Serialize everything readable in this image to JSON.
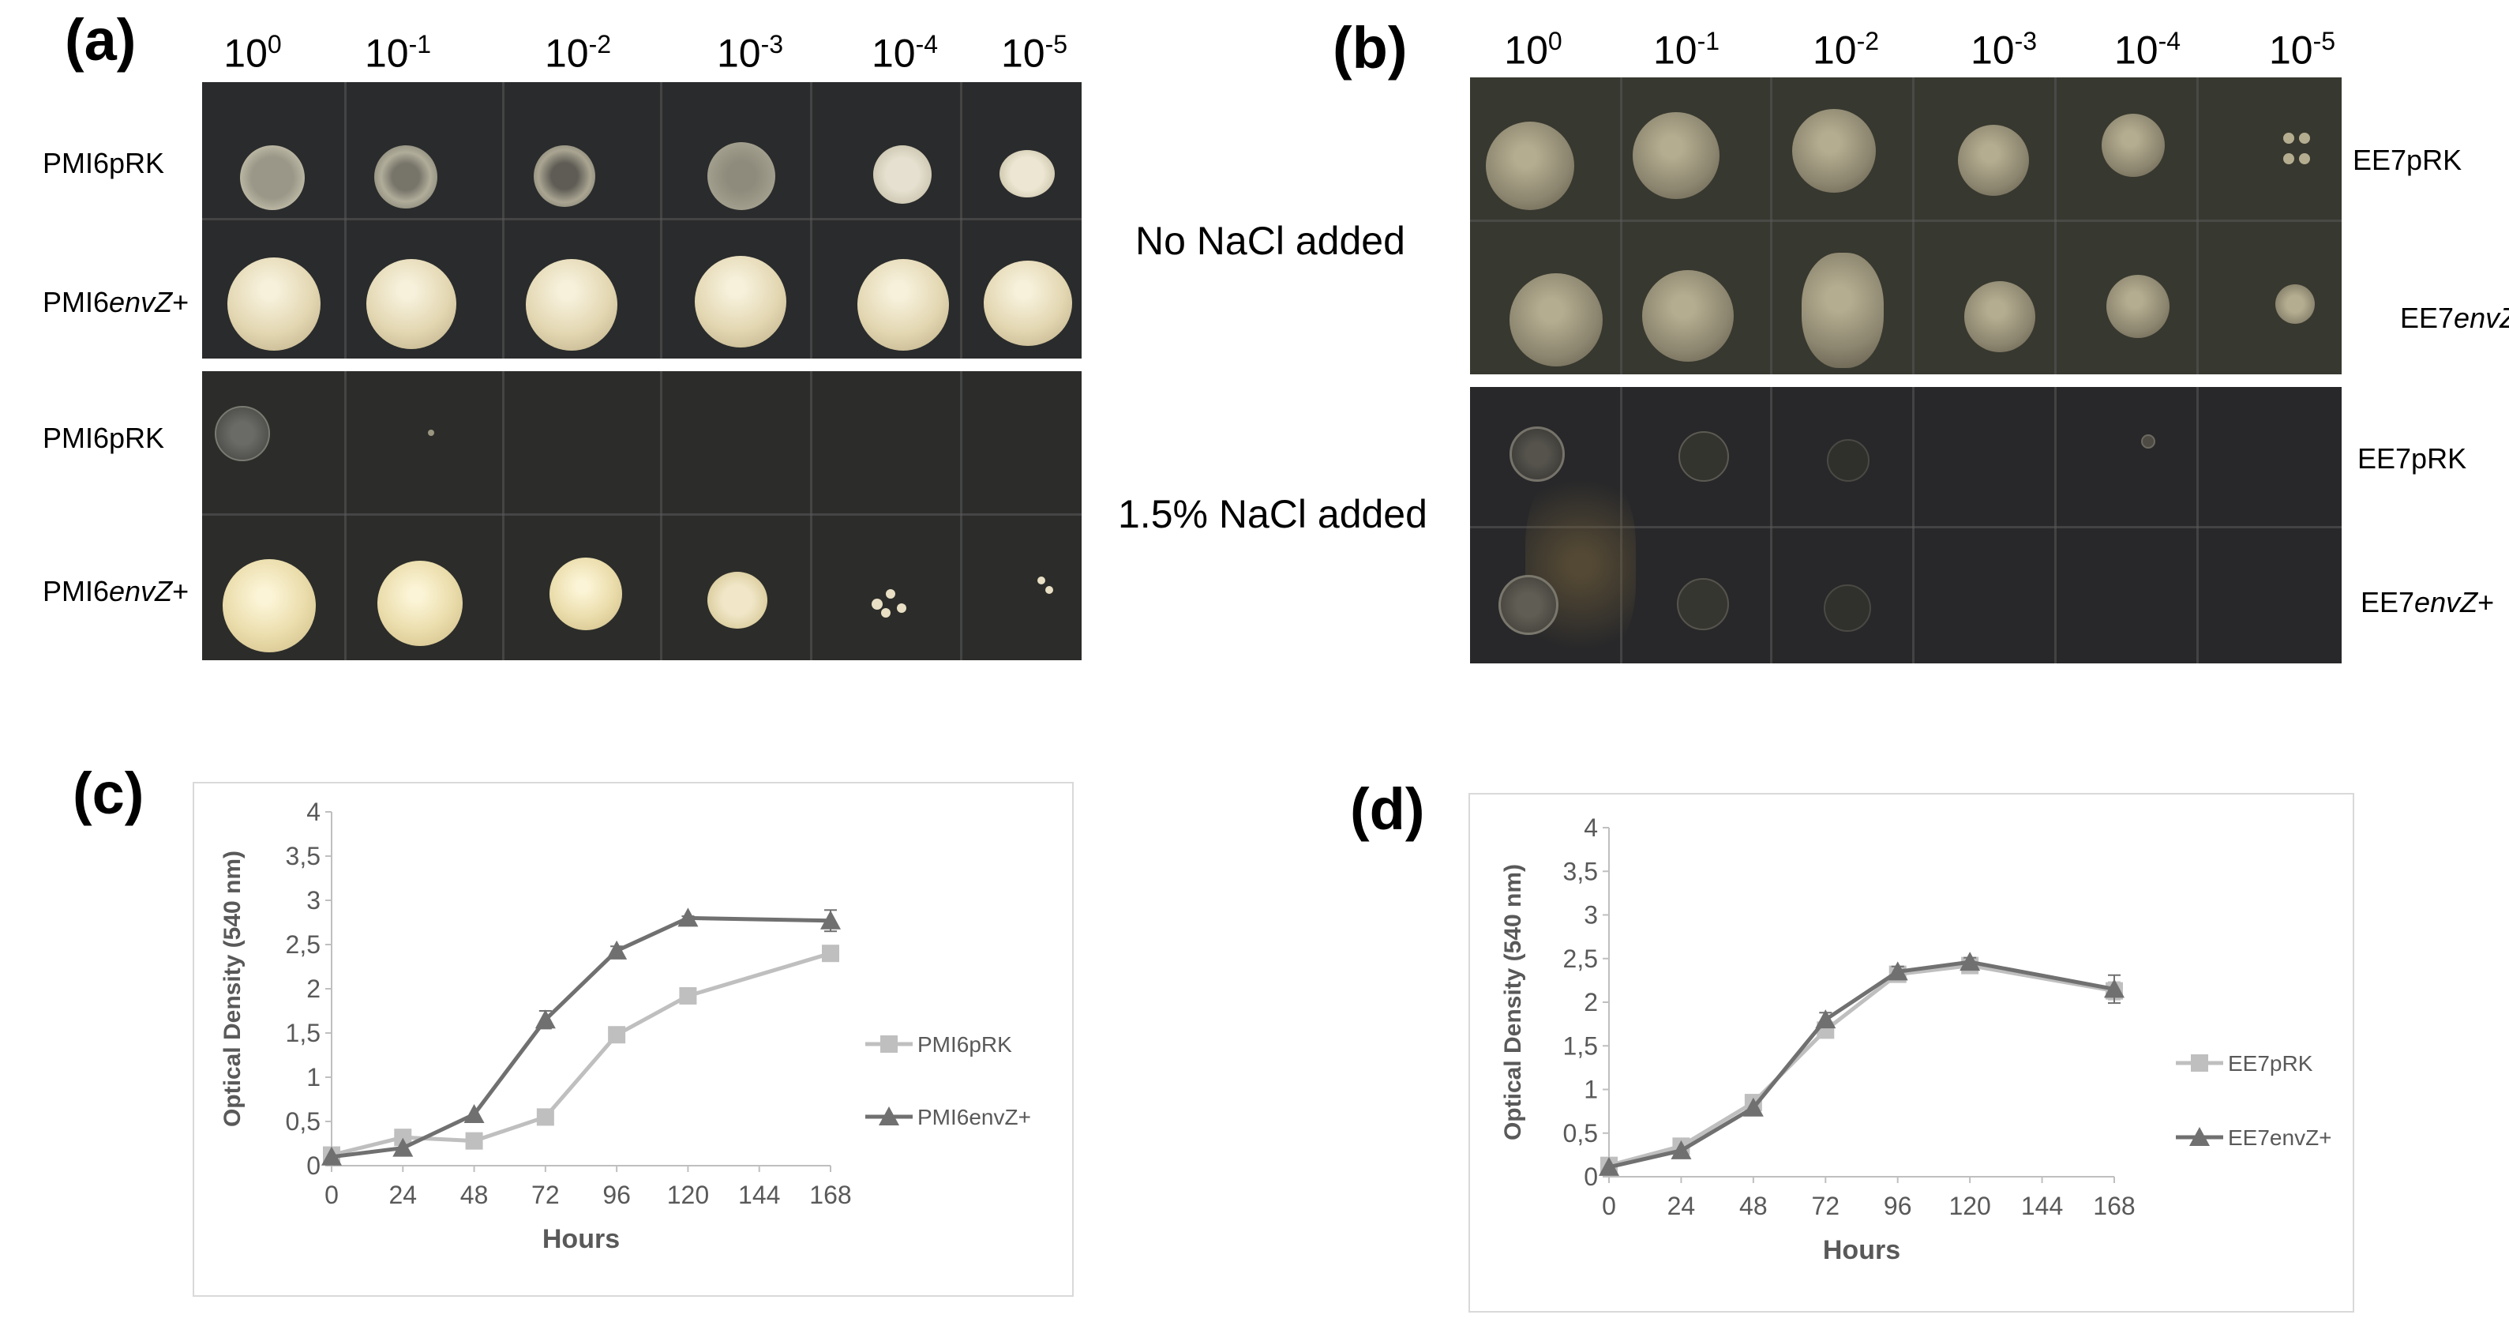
{
  "panels": {
    "a": {
      "letter": "(a)",
      "dilutions": [
        [
          "10",
          "0"
        ],
        [
          "10",
          "-1"
        ],
        [
          "10",
          "-2"
        ],
        [
          "10",
          "-3"
        ],
        [
          "10",
          "-4"
        ],
        [
          "10",
          "-5"
        ]
      ],
      "rows": [
        {
          "prefix": "PMI6",
          "suffix": "pRK",
          "italic": ""
        },
        {
          "prefix": "PMI6",
          "suffix": "+",
          "italic": "envZ"
        },
        {
          "prefix": "PMI6",
          "suffix": "pRK",
          "italic": ""
        },
        {
          "prefix": "PMI6",
          "suffix": "+",
          "italic": "envZ"
        }
      ],
      "conditions": [
        "No NaCl added",
        "1.5% NaCl added"
      ]
    },
    "b": {
      "letter": "(b)",
      "dilutions": [
        [
          "10",
          "0"
        ],
        [
          "10",
          "-1"
        ],
        [
          "10",
          "-2"
        ],
        [
          "10",
          "-3"
        ],
        [
          "10",
          "-4"
        ],
        [
          "10",
          "-5"
        ]
      ],
      "rows": [
        {
          "prefix": "EE7",
          "suffix": "pRK",
          "italic": ""
        },
        {
          "prefix": "EE7",
          "suffix": "+",
          "italic": "envZ"
        },
        {
          "prefix": "EE7",
          "suffix": "pRK",
          "italic": ""
        },
        {
          "prefix": "EE7",
          "suffix": "+",
          "italic": "envZ"
        }
      ]
    },
    "c": {
      "letter": "(c)"
    },
    "d": {
      "letter": "(d)"
    }
  },
  "colors": {
    "pRK_series": "#bfbfbf",
    "envZ_series": "#707070",
    "axis_text": "#595959",
    "plate_a": "#2a2b2c",
    "colony_light": "#e8dcb8"
  },
  "chart_data": [
    {
      "panel": "c",
      "type": "line",
      "title": "",
      "xlabel": "Hours",
      "ylabel": "Optical Density (540 nm)",
      "xticks": [
        "0",
        "24",
        "48",
        "72",
        "96",
        "120",
        "144",
        "168"
      ],
      "yticks": [
        "0",
        "0,5",
        "1",
        "1,5",
        "2",
        "2,5",
        "3",
        "3,5",
        "4"
      ],
      "xlim": [
        0,
        168
      ],
      "ylim": [
        0,
        4
      ],
      "legend_position": "right",
      "series": [
        {
          "name": "PMI6pRK",
          "marker": "square",
          "x": [
            0,
            24,
            48,
            72,
            96,
            120,
            168
          ],
          "y": [
            0.12,
            0.32,
            0.28,
            0.55,
            1.48,
            1.92,
            2.4
          ],
          "err": [
            0,
            0,
            0,
            0.03,
            0.03,
            0.03,
            0.03
          ]
        },
        {
          "name": "PMI6envZ+",
          "marker": "triangle",
          "x": [
            0,
            24,
            48,
            72,
            96,
            120,
            168
          ],
          "y": [
            0.1,
            0.2,
            0.58,
            1.65,
            2.43,
            2.8,
            2.77
          ],
          "err": [
            0,
            0,
            0,
            0.1,
            0.05,
            0.02,
            0.12
          ]
        }
      ]
    },
    {
      "panel": "d",
      "type": "line",
      "title": "",
      "xlabel": "Hours",
      "ylabel": "Optical Density (540 nm)",
      "xticks": [
        "0",
        "24",
        "48",
        "72",
        "96",
        "120",
        "144",
        "168"
      ],
      "yticks": [
        "0",
        "0,5",
        "1",
        "1,5",
        "2",
        "2,5",
        "3",
        "3,5",
        "4"
      ],
      "xlim": [
        0,
        168
      ],
      "ylim": [
        0,
        4
      ],
      "legend_position": "right",
      "series": [
        {
          "name": "EE7pRK",
          "marker": "square",
          "x": [
            0,
            24,
            48,
            72,
            96,
            120,
            168
          ],
          "y": [
            0.13,
            0.35,
            0.85,
            1.68,
            2.32,
            2.42,
            2.13
          ],
          "err": [
            0,
            0,
            0,
            0.06,
            0.06,
            0.06,
            0.1
          ]
        },
        {
          "name": "EE7envZ+",
          "marker": "triangle",
          "x": [
            0,
            24,
            48,
            72,
            96,
            120,
            168
          ],
          "y": [
            0.11,
            0.3,
            0.79,
            1.8,
            2.35,
            2.46,
            2.15
          ],
          "err": [
            0,
            0,
            0,
            0.08,
            0.06,
            0.05,
            0.16
          ]
        }
      ]
    }
  ]
}
